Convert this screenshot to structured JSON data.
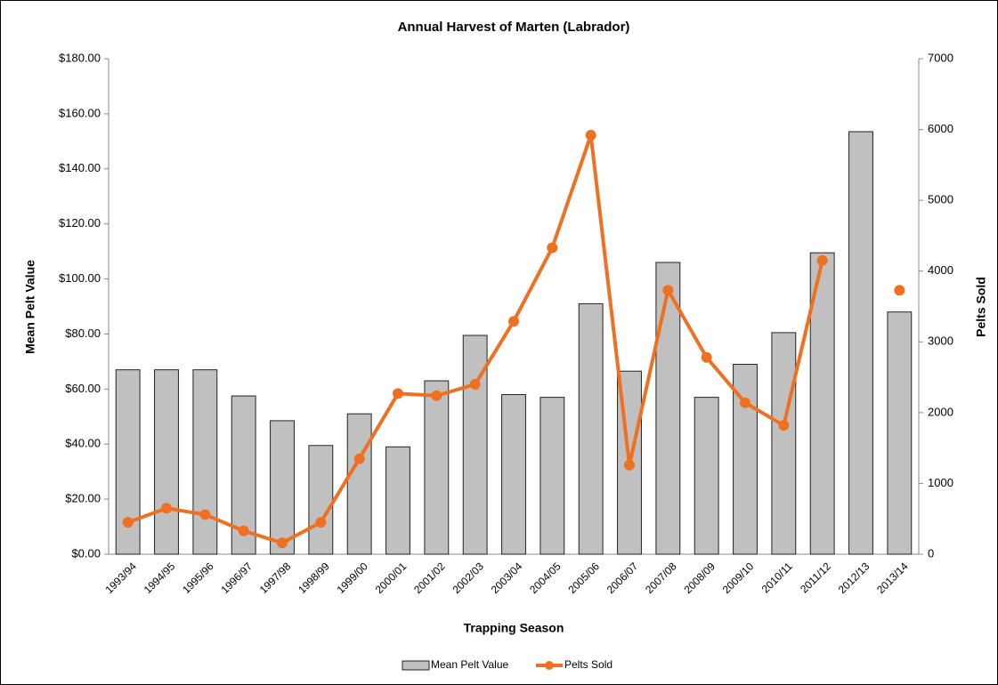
{
  "chart_data": {
    "type": "bar_line",
    "title": "Annual Harvest of Marten (Labrador)",
    "x_label": "Trapping Season",
    "y_label": "Mean Pelt Value",
    "y2_label": "Pelts Sold",
    "categories": [
      "1993/94",
      "1994/95",
      "1995/96",
      "1996/97",
      "1997/98",
      "1998/99",
      "1999/00",
      "2000/01",
      "2001/02",
      "2002/03",
      "2003/04",
      "2004/05",
      "2005/06",
      "2006/07",
      "2007/08",
      "2008/09",
      "2009/10",
      "2010/11",
      "2011/12",
      "2012/13",
      "2013/14"
    ],
    "series": [
      {
        "name": "Mean Pelt Value",
        "type": "bar",
        "color": "#c0c0c0",
        "values": [
          67,
          67,
          67,
          57.5,
          48.5,
          39.5,
          51,
          39,
          63,
          79.5,
          58,
          57,
          91,
          66.5,
          106,
          57,
          69,
          80.5,
          109.5,
          153.5,
          88
        ]
      },
      {
        "name": "Pelts Sold",
        "type": "line",
        "axis": "y2",
        "color": "#f07022",
        "values": [
          450,
          650,
          560,
          330,
          160,
          450,
          1350,
          2270,
          2240,
          2400,
          3290,
          4330,
          5920,
          1260,
          3730,
          2780,
          2140,
          1820,
          4150,
          null,
          3730
        ]
      }
    ],
    "ylim": [
      0,
      180
    ],
    "yticks": [
      {
        "value": 0,
        "label": "$0.00"
      },
      {
        "value": 20,
        "label": "$20.00"
      },
      {
        "value": 40,
        "label": "$40.00"
      },
      {
        "value": 60,
        "label": "$60.00"
      },
      {
        "value": 80,
        "label": "$80.00"
      },
      {
        "value": 100,
        "label": "$100.00"
      },
      {
        "value": 120,
        "label": "$120.00"
      },
      {
        "value": 140,
        "label": "$140.00"
      },
      {
        "value": 160,
        "label": "$160.00"
      },
      {
        "value": 180,
        "label": "$180.00"
      }
    ],
    "y2lim": [
      0,
      7000
    ],
    "y2ticks": [
      0,
      1000,
      2000,
      3000,
      4000,
      5000,
      6000,
      7000
    ],
    "legend": "bottom"
  }
}
